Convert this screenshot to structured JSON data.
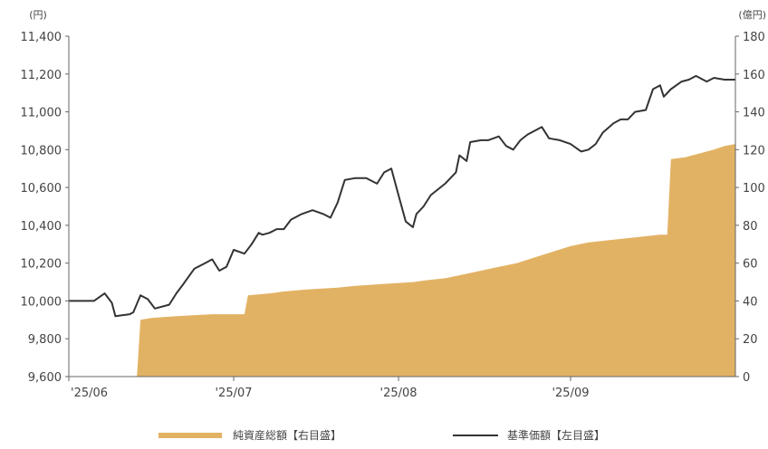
{
  "chart_data": {
    "type": "line+area",
    "left_axis": {
      "unit": "(円)",
      "ticks": [
        "11,400",
        "11,200",
        "11,000",
        "10,800",
        "10,600",
        "10,400",
        "10,200",
        "10,000",
        "9,800",
        "9,600"
      ],
      "range": [
        9600,
        11400
      ]
    },
    "right_axis": {
      "unit": "(億円)",
      "ticks": [
        "180",
        "160",
        "140",
        "120",
        "100",
        "80",
        "60",
        "40",
        "20",
        "0"
      ],
      "range": [
        0,
        180
      ]
    },
    "x_ticks": [
      "'25/06",
      "'25/07",
      "'25/08",
      "'25/09"
    ],
    "series": [
      {
        "name": "純資産総額【右目盛】",
        "kind": "area",
        "axis": "right",
        "color": "#e2b264",
        "points": [
          [
            0,
            0
          ],
          [
            19,
            0
          ],
          [
            20,
            30
          ],
          [
            23,
            31
          ],
          [
            30,
            32
          ],
          [
            40,
            33
          ],
          [
            49,
            33
          ],
          [
            50,
            43
          ],
          [
            56,
            44
          ],
          [
            60,
            45
          ],
          [
            66,
            46
          ],
          [
            75,
            47
          ],
          [
            80,
            48
          ],
          [
            88,
            49
          ],
          [
            96,
            50
          ],
          [
            100,
            51
          ],
          [
            105,
            52
          ],
          [
            110,
            54
          ],
          [
            115,
            56
          ],
          [
            120,
            58
          ],
          [
            125,
            60
          ],
          [
            130,
            63
          ],
          [
            135,
            66
          ],
          [
            140,
            69
          ],
          [
            145,
            71
          ],
          [
            150,
            72
          ],
          [
            155,
            73
          ],
          [
            160,
            74
          ],
          [
            165,
            75
          ],
          [
            167,
            75
          ],
          [
            168,
            115
          ],
          [
            172,
            116
          ],
          [
            176,
            118
          ],
          [
            180,
            120
          ],
          [
            183,
            122
          ],
          [
            186,
            123
          ]
        ]
      },
      {
        "name": "基準価額【左目盛】",
        "kind": "line",
        "axis": "left",
        "color": "#333333",
        "points": [
          [
            0,
            10000
          ],
          [
            7,
            10000
          ],
          [
            10,
            10040
          ],
          [
            12,
            9990
          ],
          [
            13,
            9920
          ],
          [
            17,
            9930
          ],
          [
            18,
            9940
          ],
          [
            20,
            10030
          ],
          [
            22,
            10010
          ],
          [
            24,
            9960
          ],
          [
            28,
            9980
          ],
          [
            30,
            10040
          ],
          [
            32,
            10090
          ],
          [
            35,
            10170
          ],
          [
            38,
            10200
          ],
          [
            40,
            10220
          ],
          [
            42,
            10160
          ],
          [
            44,
            10180
          ],
          [
            46,
            10270
          ],
          [
            49,
            10250
          ],
          [
            51,
            10300
          ],
          [
            53,
            10360
          ],
          [
            54,
            10350
          ],
          [
            56,
            10360
          ],
          [
            58,
            10380
          ],
          [
            60,
            10380
          ],
          [
            62,
            10430
          ],
          [
            65,
            10460
          ],
          [
            68,
            10480
          ],
          [
            71,
            10460
          ],
          [
            73,
            10440
          ],
          [
            75,
            10520
          ],
          [
            77,
            10640
          ],
          [
            80,
            10650
          ],
          [
            83,
            10650
          ],
          [
            86,
            10620
          ],
          [
            88,
            10680
          ],
          [
            90,
            10700
          ],
          [
            92,
            10560
          ],
          [
            94,
            10420
          ],
          [
            96,
            10390
          ],
          [
            97,
            10460
          ],
          [
            99,
            10500
          ],
          [
            101,
            10560
          ],
          [
            105,
            10620
          ],
          [
            108,
            10680
          ],
          [
            109,
            10770
          ],
          [
            111,
            10740
          ],
          [
            112,
            10840
          ],
          [
            115,
            10850
          ],
          [
            117,
            10850
          ],
          [
            120,
            10870
          ],
          [
            122,
            10820
          ],
          [
            124,
            10800
          ],
          [
            126,
            10850
          ],
          [
            128,
            10880
          ],
          [
            132,
            10920
          ],
          [
            134,
            10860
          ],
          [
            137,
            10850
          ],
          [
            140,
            10830
          ],
          [
            143,
            10790
          ],
          [
            145,
            10800
          ],
          [
            147,
            10830
          ],
          [
            149,
            10890
          ],
          [
            152,
            10940
          ],
          [
            154,
            10960
          ],
          [
            156,
            10960
          ],
          [
            158,
            11000
          ],
          [
            161,
            11010
          ],
          [
            163,
            11120
          ],
          [
            165,
            11140
          ],
          [
            166,
            11080
          ],
          [
            168,
            11120
          ],
          [
            171,
            11160
          ],
          [
            173,
            11170
          ],
          [
            175,
            11190
          ],
          [
            178,
            11160
          ],
          [
            180,
            11180
          ],
          [
            183,
            11170
          ],
          [
            186,
            11170
          ]
        ]
      }
    ]
  },
  "legend": {
    "area_label": "純資産総額【右目盛】",
    "line_label": "基準価額【左目盛】"
  }
}
